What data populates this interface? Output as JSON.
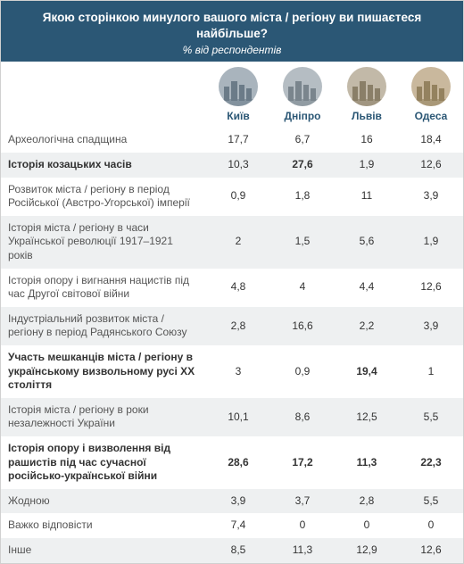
{
  "colors": {
    "header_bg": "#2b5775",
    "header_text": "#ffffff",
    "city_text": "#2b5775",
    "row_label": "#555555",
    "row_val": "#333333",
    "row_alt_bg": "#eef0f1",
    "row_bg": "#ffffff",
    "border": "#d0d0d0",
    "bold_text": "#333333"
  },
  "title": "Якою сторінкою минулого вашого міста / регіону ви пишаєтеся найбільше?",
  "subtitle": "% від респондентів",
  "cities": [
    {
      "name": "Київ",
      "icon_bg": "#a9b4bd",
      "icon_fg": "#6b7b88"
    },
    {
      "name": "Дніпро",
      "icon_bg": "#b5bdc3",
      "icon_fg": "#7a858d"
    },
    {
      "name": "Львів",
      "icon_bg": "#c2b9a8",
      "icon_fg": "#8a7f68"
    },
    {
      "name": "Одеса",
      "icon_bg": "#c9b89d",
      "icon_fg": "#94825f"
    }
  ],
  "rows": [
    {
      "label": "Археологічна спадщина",
      "values": [
        "17,7",
        "6,7",
        "16",
        "18,4"
      ],
      "bold_row": false,
      "bold_cells": []
    },
    {
      "label": "Історія козацьких часів",
      "values": [
        "10,3",
        "27,6",
        "1,9",
        "12,6"
      ],
      "bold_row": true,
      "bold_cells": [
        1
      ]
    },
    {
      "label": "Розвиток міста / регіону в період Російської (Австро-Угорської) імперії",
      "values": [
        "0,9",
        "1,8",
        "11",
        "3,9"
      ],
      "bold_row": false,
      "bold_cells": []
    },
    {
      "label": "Історія міста / регіону в часи Української революції 1917–1921 років",
      "values": [
        "2",
        "1,5",
        "5,6",
        "1,9"
      ],
      "bold_row": false,
      "bold_cells": []
    },
    {
      "label": "Історія опору і вигнання нацистів під час Другої світової війни",
      "values": [
        "4,8",
        "4",
        "4,4",
        "12,6"
      ],
      "bold_row": false,
      "bold_cells": []
    },
    {
      "label": "Індустріальний розвиток міста / регіону в період Радянського Союзу",
      "values": [
        "2,8",
        "16,6",
        "2,2",
        "3,9"
      ],
      "bold_row": false,
      "bold_cells": []
    },
    {
      "label": "Участь мешканців міста / регіону в українському визвольному русі ХХ століття",
      "values": [
        "3",
        "0,9",
        "19,4",
        "1"
      ],
      "bold_row": true,
      "bold_cells": [
        2
      ]
    },
    {
      "label": "Історія міста / регіону в роки незалежності України",
      "values": [
        "10,1",
        "8,6",
        "12,5",
        "5,5"
      ],
      "bold_row": false,
      "bold_cells": []
    },
    {
      "label": "Історія опору і визволення від рашистів під час сучасної російсько-української війни",
      "values": [
        "28,6",
        "17,2",
        "11,3",
        "22,3"
      ],
      "bold_row": true,
      "bold_cells": [
        0,
        1,
        2,
        3
      ]
    },
    {
      "label": "Жодною",
      "values": [
        "3,9",
        "3,7",
        "2,8",
        "5,5"
      ],
      "bold_row": false,
      "bold_cells": []
    },
    {
      "label": "Важко відповісти",
      "values": [
        "7,4",
        "0",
        "0",
        "0"
      ],
      "bold_row": false,
      "bold_cells": []
    },
    {
      "label": "Інше",
      "values": [
        "8,5",
        "11,3",
        "12,9",
        "12,6"
      ],
      "bold_row": false,
      "bold_cells": []
    }
  ]
}
